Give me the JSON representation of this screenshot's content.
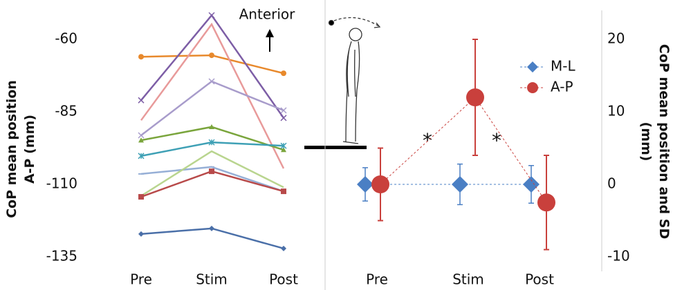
{
  "chart_data": [
    {
      "type": "line",
      "ylabel": [
        "CoP mean position",
        "A-P (mm)"
      ],
      "annotations": [
        "Anterior"
      ],
      "categories": [
        "Pre",
        "Stim",
        "Post"
      ],
      "ylim": [
        -140,
        -50
      ],
      "yticks": [
        -60,
        -85,
        -110,
        -135
      ],
      "series": [
        {
          "color": "#4a6fa8",
          "marker": "diamond",
          "values": [
            -127.1,
            -125.2,
            -132.1
          ]
        },
        {
          "color": "#e8892c",
          "marker": "circle",
          "values": [
            -66.0,
            -65.5,
            -71.7
          ]
        },
        {
          "color": "#7d5ea6",
          "marker": "x",
          "values": [
            -81.0,
            -51.7,
            -87.1
          ]
        },
        {
          "color": "#e89a9a",
          "marker": "none",
          "values": [
            -87.9,
            -54.8,
            -104.5
          ]
        },
        {
          "color": "#a89ccb",
          "marker": "x",
          "values": [
            -93.1,
            -74.5,
            -84.5
          ]
        },
        {
          "color": "#7aa53c",
          "marker": "triangle",
          "values": [
            -94.8,
            -90.2,
            -98.1
          ]
        },
        {
          "color": "#3ea0b5",
          "marker": "star",
          "values": [
            -100.2,
            -95.5,
            -96.7
          ]
        },
        {
          "color": "#96afd6",
          "marker": "plus",
          "values": [
            -106.4,
            -104.0,
            -112.4
          ]
        },
        {
          "color": "#b9d58f",
          "marker": "none",
          "values": [
            -114.0,
            -98.6,
            -111.0
          ]
        },
        {
          "color": "#b84a4a",
          "marker": "square",
          "values": [
            -114.3,
            -105.5,
            -112.4
          ]
        }
      ]
    },
    {
      "type": "errorbar",
      "ylabel": [
        "CoP mean position and SD",
        "(mm)"
      ],
      "annotations": [
        "*",
        "*"
      ],
      "categories": [
        "Pre",
        "Stim",
        "Post"
      ],
      "ylim": [
        -12,
        24
      ],
      "yticks": [
        20,
        10,
        0,
        -10
      ],
      "legend": "upper right",
      "series": [
        {
          "name": "M-L",
          "color": "#4a7fc4",
          "marker": "diamond",
          "values": [
            0,
            0,
            0
          ],
          "errors": [
            2.3,
            2.8,
            2.6
          ]
        },
        {
          "name": "A-P",
          "color": "#c9403c",
          "marker": "circle",
          "values": [
            0,
            12,
            -2.5
          ],
          "errors": [
            5,
            8,
            6.5
          ]
        }
      ]
    }
  ]
}
